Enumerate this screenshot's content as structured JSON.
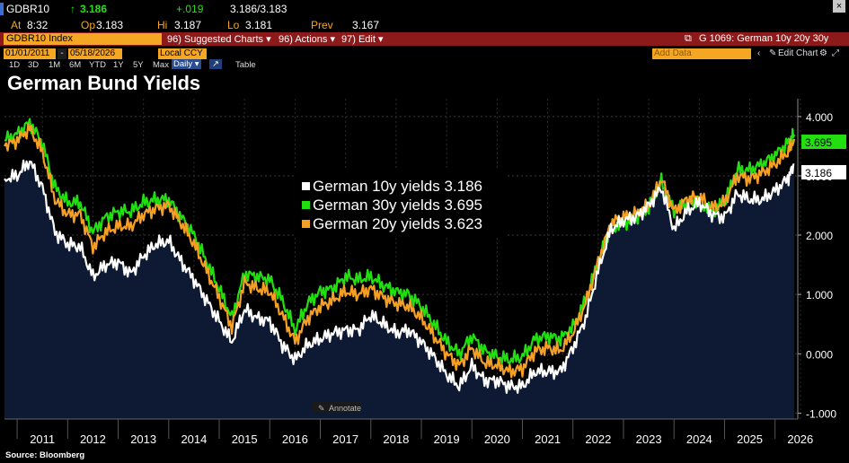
{
  "quote": {
    "ticker": "GDBR10",
    "arrow": "↑",
    "last": "3.186",
    "change": "+.019",
    "bid_ask": "3.186/3.183",
    "time_label": "At",
    "time": "8:32",
    "open_label": "Op",
    "open": "3.183",
    "high_label": "Hi",
    "high": "3.187",
    "low_label": "Lo",
    "low": "3.181",
    "prev_label": "Prev",
    "prev": "3.167",
    "close_symbol": "×"
  },
  "toolbar": {
    "security": "GDBR10 Index",
    "suggested_charts": "96) Suggested Charts ▾",
    "actions": "96) Actions ▾",
    "edit": "97) Edit ▾",
    "chart_id": "G 1069: German 10y 20y 30y"
  },
  "date_row": {
    "start": "01/01/2011",
    "end": "05/18/2026",
    "currency": "Local CCY",
    "add_data": "Add Data",
    "edit_chart": "Edit Chart"
  },
  "periods": [
    "1D",
    "3D",
    "1M",
    "6M",
    "YTD",
    "1Y",
    "5Y",
    "Max"
  ],
  "period_selected": "Daily ▾",
  "table_label": "Table",
  "annotate_label": "Annotate",
  "title": "German Bund Yields",
  "source": "Source: Bloomberg",
  "colors": {
    "bg": "#000000",
    "plot_fill": "#0e1a33",
    "y10": "#ffffff",
    "y30": "#22e010",
    "y20": "#f5a025",
    "toolbar": "#8c1a1a",
    "accent_orange": "#f5a623"
  },
  "chart_data": {
    "type": "line",
    "title": "German Bund Yields",
    "xlabel": "",
    "ylabel": "",
    "ylim": [
      -1.1,
      4.3
    ],
    "xlim": [
      2010.75,
      2026.45
    ],
    "yticks": [
      4.0,
      3.0,
      2.0,
      1.0,
      0.0,
      -1.0
    ],
    "ytick_labels": [
      "4.000",
      "3.000",
      "2.000",
      "1.000",
      "0.000",
      "-1.000"
    ],
    "xtick_labels": [
      "2011",
      "2012",
      "2013",
      "2014",
      "2015",
      "2016",
      "2017",
      "2018",
      "2019",
      "2020",
      "2021",
      "2022",
      "2023",
      "2024",
      "2025",
      "2026"
    ],
    "legend_placement": "center",
    "grid": true,
    "x": [
      2010.75,
      2011.0,
      2011.25,
      2011.5,
      2011.75,
      2012.0,
      2012.25,
      2012.5,
      2012.75,
      2013.0,
      2013.25,
      2013.5,
      2013.75,
      2014.0,
      2014.25,
      2014.5,
      2014.75,
      2015.0,
      2015.25,
      2015.5,
      2015.75,
      2016.0,
      2016.25,
      2016.5,
      2016.75,
      2017.0,
      2017.25,
      2017.5,
      2017.75,
      2018.0,
      2018.25,
      2018.5,
      2018.75,
      2019.0,
      2019.25,
      2019.5,
      2019.75,
      2020.0,
      2020.25,
      2020.5,
      2020.75,
      2021.0,
      2021.25,
      2021.5,
      2021.75,
      2022.0,
      2022.25,
      2022.5,
      2022.75,
      2023.0,
      2023.25,
      2023.5,
      2023.75,
      2024.0,
      2024.25,
      2024.5,
      2024.75,
      2025.0,
      2025.25,
      2025.5,
      2025.75,
      2026.0,
      2026.25,
      2026.38
    ],
    "series": [
      {
        "name": "German 10y yields",
        "last": "3.186",
        "color": "#ffffff",
        "values": [
          2.95,
          3.0,
          3.25,
          2.8,
          2.05,
          1.85,
          1.8,
          1.3,
          1.5,
          1.55,
          1.35,
          1.65,
          1.85,
          1.9,
          1.55,
          1.25,
          0.9,
          0.55,
          0.2,
          0.75,
          0.6,
          0.55,
          0.15,
          -0.1,
          0.15,
          0.25,
          0.35,
          0.4,
          0.4,
          0.65,
          0.5,
          0.35,
          0.4,
          0.2,
          -0.05,
          -0.35,
          -0.55,
          -0.2,
          -0.45,
          -0.45,
          -0.55,
          -0.55,
          -0.3,
          -0.3,
          -0.3,
          0.1,
          0.6,
          1.4,
          2.1,
          2.25,
          2.3,
          2.5,
          2.8,
          2.1,
          2.4,
          2.55,
          2.35,
          2.3,
          2.7,
          2.6,
          2.6,
          2.75,
          2.95,
          3.186
        ]
      },
      {
        "name": "German 30y yields",
        "last": "3.695",
        "color": "#22e010",
        "values": [
          3.6,
          3.7,
          3.9,
          3.55,
          2.8,
          2.55,
          2.55,
          2.05,
          2.3,
          2.4,
          2.4,
          2.55,
          2.6,
          2.6,
          2.3,
          2.0,
          1.55,
          1.1,
          0.6,
          1.35,
          1.3,
          1.25,
          0.9,
          0.4,
          0.85,
          1.05,
          1.1,
          1.3,
          1.25,
          1.3,
          1.15,
          1.05,
          1.0,
          0.8,
          0.5,
          0.2,
          0.0,
          0.3,
          0.05,
          -0.05,
          -0.1,
          -0.05,
          0.25,
          0.3,
          0.25,
          0.45,
          0.9,
          1.55,
          2.15,
          2.2,
          2.3,
          2.45,
          2.9,
          2.4,
          2.55,
          2.6,
          2.4,
          2.55,
          3.1,
          3.1,
          3.2,
          3.35,
          3.55,
          3.695
        ]
      },
      {
        "name": "German 20y yields",
        "last": "3.623",
        "color": "#f5a025",
        "values": [
          3.5,
          3.6,
          3.8,
          3.4,
          2.6,
          2.35,
          2.35,
          1.8,
          2.05,
          2.15,
          2.15,
          2.35,
          2.45,
          2.5,
          2.2,
          1.85,
          1.4,
          0.95,
          0.45,
          1.2,
          1.1,
          1.05,
          0.65,
          0.2,
          0.6,
          0.8,
          0.9,
          1.05,
          1.0,
          1.1,
          0.95,
          0.85,
          0.8,
          0.6,
          0.3,
          0.0,
          -0.2,
          0.1,
          -0.15,
          -0.2,
          -0.3,
          -0.25,
          0.05,
          0.1,
          0.05,
          0.35,
          0.85,
          1.55,
          2.2,
          2.3,
          2.35,
          2.5,
          2.95,
          2.4,
          2.6,
          2.65,
          2.45,
          2.55,
          3.0,
          2.95,
          3.05,
          3.2,
          3.4,
          3.623
        ]
      }
    ]
  }
}
